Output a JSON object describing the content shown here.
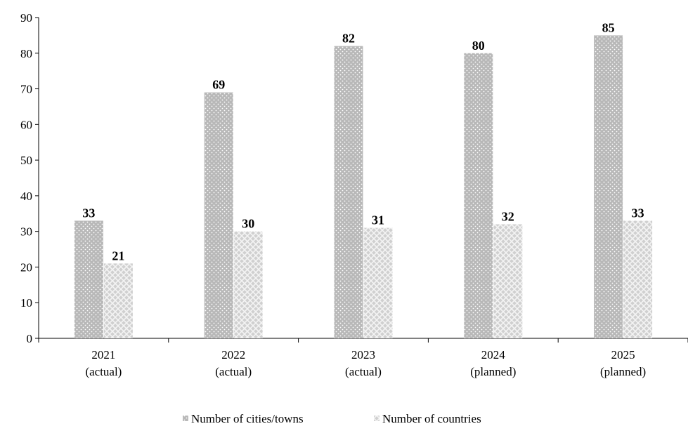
{
  "chart_data": {
    "type": "bar",
    "categories": [
      [
        "2021",
        "(actual)"
      ],
      [
        "2022",
        "(actual)"
      ],
      [
        "2023",
        "(actual)"
      ],
      [
        "2024",
        "(planned)"
      ],
      [
        "2025",
        "(planned)"
      ]
    ],
    "series": [
      {
        "name": "Number of cities/towns",
        "values": [
          33,
          69,
          82,
          80,
          85
        ],
        "color": "#b8b8b8",
        "pattern": "dots"
      },
      {
        "name": "Number of countries",
        "values": [
          21,
          30,
          31,
          32,
          33
        ],
        "color": "#d0d0d0",
        "pattern": "crosshatch"
      }
    ],
    "ylim": [
      0,
      90
    ],
    "yticks": [
      0,
      10,
      20,
      30,
      40,
      50,
      60,
      70,
      80,
      90
    ],
    "grid": false,
    "legend_position": "bottom"
  }
}
